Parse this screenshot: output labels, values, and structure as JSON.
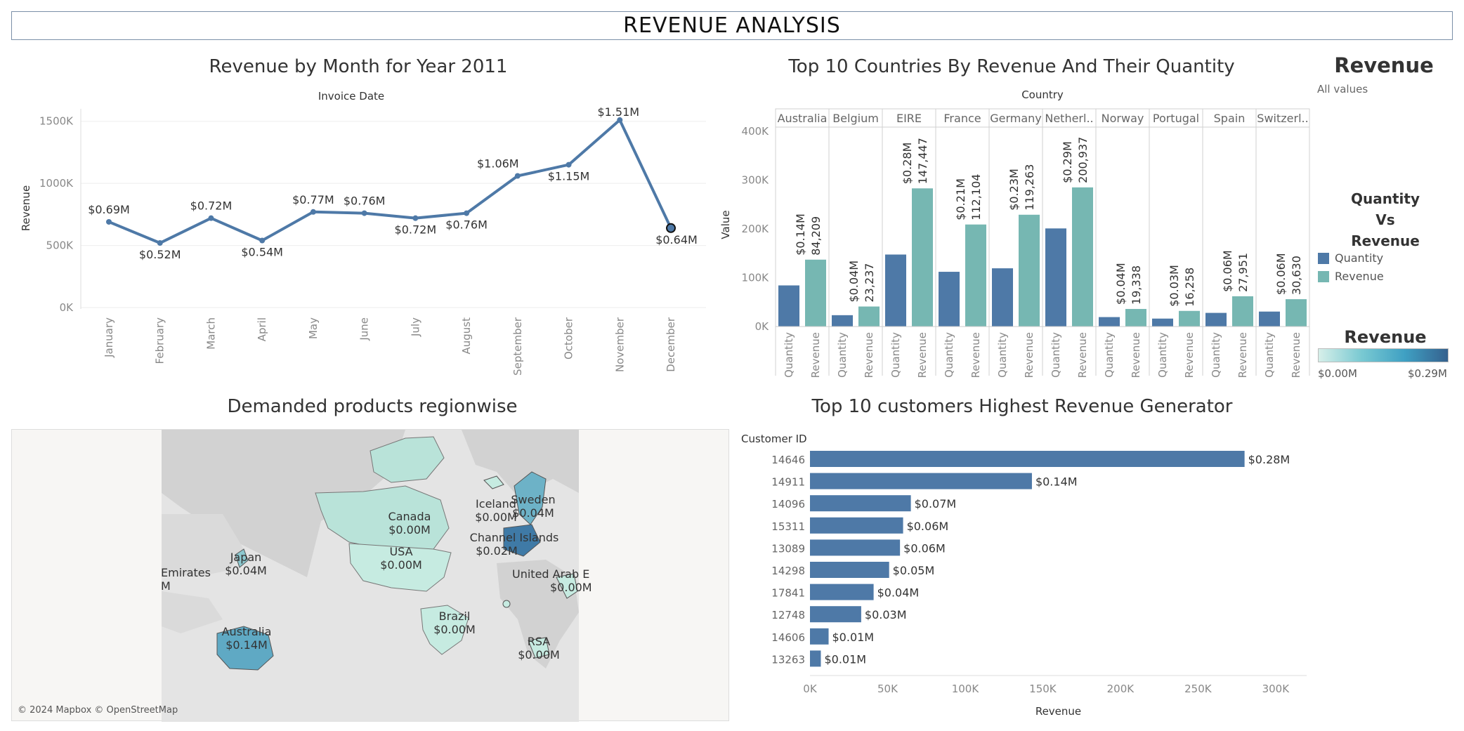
{
  "dashboard": {
    "title": "REVENUE ANALYSIS"
  },
  "colors": {
    "quantity": "#4e79a7",
    "revenue": "#76b7b2",
    "line": "#4e79a7",
    "axis": "#888888"
  },
  "line_chart": {
    "title": "Revenue by Month for Year 2011",
    "top_label": "Invoice Date",
    "y_label": "Revenue",
    "y_ticks": [
      "1500K",
      "1000K",
      "500K",
      "0K"
    ]
  },
  "countries_chart": {
    "title": "Top 10 Countries By Revenue And  Their Quantity",
    "header_label": "Country",
    "y_label": "Value",
    "y_ticks": [
      "400K",
      "300K",
      "200K",
      "100K",
      "0K"
    ],
    "measure_labels": [
      "Quantity",
      "Revenue"
    ]
  },
  "legend": {
    "revenue_title": "Revenue",
    "revenue_sub": "All values",
    "qvr_title_lines": [
      "Quantity",
      "Vs",
      "Revenue"
    ],
    "items": [
      {
        "label": "Quantity",
        "color": "#4e79a7"
      },
      {
        "label": "Revenue",
        "color": "#76b7b2"
      }
    ],
    "gradient_title": "Revenue",
    "gradient_min": "$0.00M",
    "gradient_max": "$0.29M"
  },
  "map": {
    "title": "Demanded products regionwise",
    "credit": "© 2024 Mapbox © OpenStreetMap",
    "markers": [
      {
        "name": "Canada",
        "value": "$0.00M"
      },
      {
        "name": "USA",
        "value": "$0.00M"
      },
      {
        "name": "Japan",
        "value": "$0.04M"
      },
      {
        "name": "Emirates",
        "value": "M"
      },
      {
        "name": "Australia",
        "value": "$0.14M"
      },
      {
        "name": "Brazil",
        "value": "$0.00M"
      },
      {
        "name": "Iceland",
        "value": "$0.00M"
      },
      {
        "name": "Sweden",
        "value": "$0.04M"
      },
      {
        "name": "Channel Islands",
        "value": "$0.02M"
      },
      {
        "name": "United Arab E",
        "value": "$0.00M"
      },
      {
        "name": "RSA",
        "value": "$0.00M"
      }
    ]
  },
  "customers_chart": {
    "title": "Top 10 customers Highest Revenue Generator",
    "y_header": "Customer ID",
    "x_label": "Revenue",
    "x_ticks": [
      "0K",
      "50K",
      "100K",
      "150K",
      "200K",
      "250K",
      "300K"
    ]
  },
  "chart_data": [
    {
      "type": "line",
      "title": "Revenue by Month for Year 2011",
      "xlabel": "Invoice Date",
      "ylabel": "Revenue",
      "ylim": [
        0,
        1600000
      ],
      "categories": [
        "January",
        "February",
        "March",
        "April",
        "May",
        "June",
        "July",
        "August",
        "September",
        "October",
        "November",
        "December"
      ],
      "values": [
        690000,
        520000,
        720000,
        540000,
        770000,
        760000,
        720000,
        760000,
        1060000,
        1150000,
        1510000,
        640000
      ],
      "labels": [
        "$0.69M",
        "$0.52M",
        "$0.72M",
        "$0.54M",
        "$0.77M",
        "$0.76M",
        "$0.72M",
        "$0.76M",
        "$1.06M",
        "$1.15M",
        "$1.51M",
        "$0.64M"
      ]
    },
    {
      "type": "bar",
      "title": "Top 10 Countries By Revenue And  Their Quantity",
      "xlabel": "Country",
      "ylabel": "Value",
      "ylim": [
        0,
        420000
      ],
      "categories": [
        "Australia",
        "Belgium",
        "EIRE",
        "France",
        "Germany",
        "Netherl..",
        "Norway",
        "Portugal",
        "Spain",
        "Switzerl.."
      ],
      "series": [
        {
          "name": "Quantity",
          "values": [
            84209,
            23237,
            147447,
            112104,
            119263,
            200937,
            19338,
            16258,
            27951,
            30630
          ],
          "labels": [
            "84,209",
            "23,237",
            "147,447",
            "112,104",
            "119,263",
            "200,937",
            "19,338",
            "16,258",
            "27,951",
            "30,630"
          ]
        },
        {
          "name": "Revenue",
          "values": [
            137000,
            41000,
            283000,
            209000,
            229000,
            285000,
            36000,
            32000,
            62000,
            56000
          ],
          "labels": [
            "$0.14M",
            "$0.04M",
            "$0.28M",
            "$0.21M",
            "$0.23M",
            "$0.29M",
            "$0.04M",
            "$0.03M",
            "$0.06M",
            "$0.06M"
          ]
        }
      ]
    },
    {
      "type": "bar",
      "orientation": "horizontal",
      "title": "Top 10 customers Highest Revenue Generator",
      "xlabel": "Revenue",
      "ylabel": "Customer ID",
      "xlim": [
        0,
        320000
      ],
      "categories": [
        "14646",
        "14911",
        "14096",
        "15311",
        "13089",
        "14298",
        "17841",
        "12748",
        "14606",
        "13263"
      ],
      "values": [
        280000,
        143000,
        65000,
        60000,
        58000,
        51000,
        41000,
        33000,
        12000,
        7000
      ],
      "labels": [
        "$0.28M",
        "$0.14M",
        "$0.07M",
        "$0.06M",
        "$0.06M",
        "$0.05M",
        "$0.04M",
        "$0.03M",
        "$0.01M",
        "$0.01M"
      ]
    }
  ]
}
